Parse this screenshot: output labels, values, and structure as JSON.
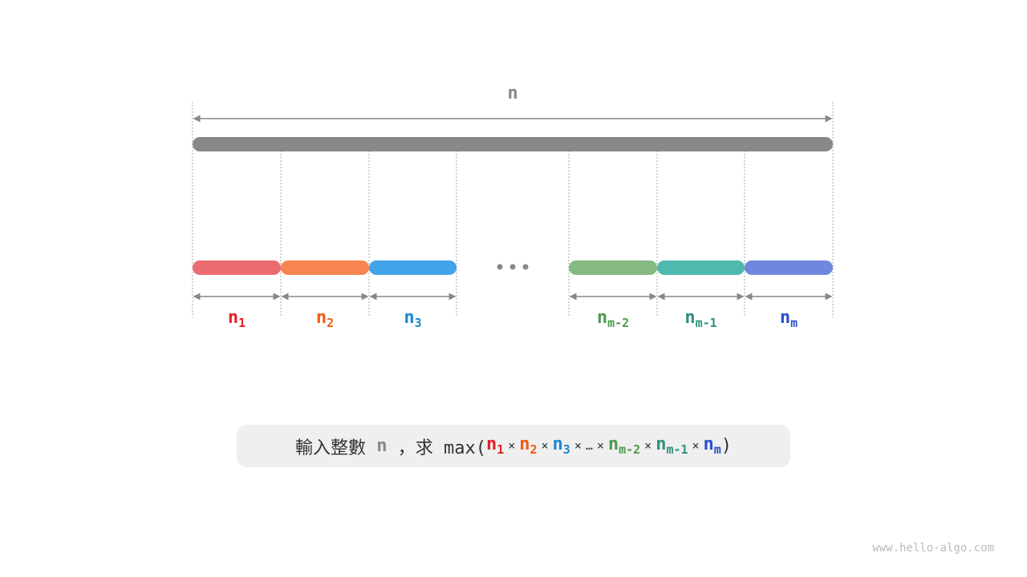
{
  "diagram": {
    "total_label": "n",
    "ellipsis": "• • •",
    "segments": [
      {
        "base": "n",
        "sub": "1",
        "color": "#e5202a",
        "bar_color": "#ec6b70"
      },
      {
        "base": "n",
        "sub": "2",
        "color": "#f05a14",
        "bar_color": "#f7854f"
      },
      {
        "base": "n",
        "sub": "3",
        "color": "#1a88d0",
        "bar_color": "#42a4e8"
      },
      {
        "base": "n",
        "sub": "m-2",
        "color": "#4f9a4f",
        "bar_color": "#84b980"
      },
      {
        "base": "n",
        "sub": "m-1",
        "color": "#2e9080",
        "bar_color": "#50b9af"
      },
      {
        "base": "n",
        "sub": "m",
        "color": "#2a4ecf",
        "bar_color": "#6f87de"
      }
    ]
  },
  "formula": {
    "prefix": "輸入整數 ",
    "n": "n",
    "middle": " ，求 max(",
    "times": "×",
    "dots": "…",
    "close": ")"
  },
  "watermark": "www.hello-algo.com"
}
